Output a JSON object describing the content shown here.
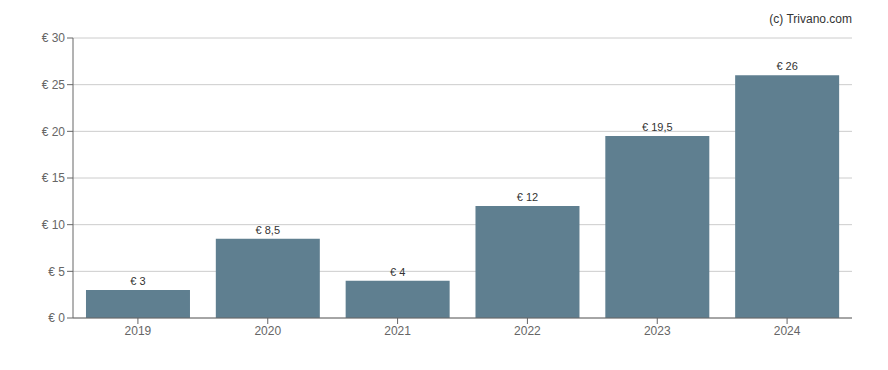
{
  "chart_data": {
    "type": "bar",
    "categories": [
      "2019",
      "2020",
      "2021",
      "2022",
      "2023",
      "2024"
    ],
    "values": [
      3,
      8.5,
      4,
      12,
      19.5,
      26
    ],
    "value_labels": [
      "€ 3",
      "€ 8,5",
      "€ 4",
      "€ 12",
      "€ 19,5",
      "€ 26"
    ],
    "data_labels": true,
    "color": "#5f7f90",
    "ylim": [
      0,
      30
    ],
    "yticks": [
      {
        "value": 0,
        "label": "€ 0"
      },
      {
        "value": 5,
        "label": "€ 5"
      },
      {
        "value": 10,
        "label": "€ 10"
      },
      {
        "value": 15,
        "label": "€ 15"
      },
      {
        "value": 20,
        "label": "€ 20"
      },
      {
        "value": 25,
        "label": "€ 25"
      },
      {
        "value": 30,
        "label": "€ 30"
      }
    ],
    "grid": true,
    "annotations": [
      "(c) Trivano.com"
    ]
  }
}
